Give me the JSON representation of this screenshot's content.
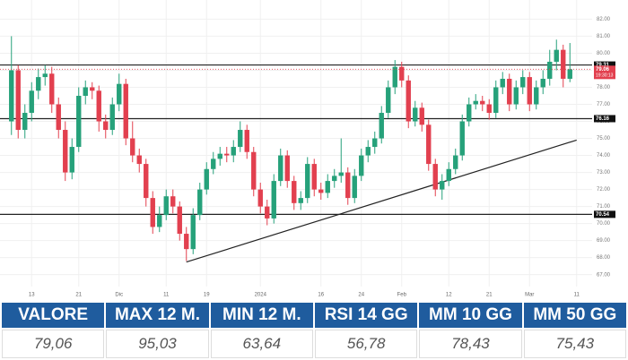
{
  "chart_data": {
    "type": "candlestick",
    "up_color": "#26a17a",
    "down_color": "#e2404f",
    "xlim": [
      -1.7,
      86.3
    ],
    "xticks": [
      {
        "value": 3,
        "label": "13"
      },
      {
        "value": 10,
        "label": "21"
      },
      {
        "value": 16,
        "label": "Dic"
      },
      {
        "value": 23,
        "label": "11"
      },
      {
        "value": 29,
        "label": "19"
      },
      {
        "value": 37,
        "label": "2024"
      },
      {
        "value": 46,
        "label": "16"
      },
      {
        "value": 52,
        "label": "24"
      },
      {
        "value": 58,
        "label": "Feb"
      },
      {
        "value": 65,
        "label": "12"
      },
      {
        "value": 71,
        "label": "21"
      },
      {
        "value": 77,
        "label": "Mar"
      },
      {
        "value": 84,
        "label": "11"
      }
    ],
    "ylim": [
      82.6,
      66.3
    ],
    "yticks": [
      {
        "value": 82,
        "label": "82.00"
      },
      {
        "value": 81,
        "label": "81.00"
      },
      {
        "value": 80,
        "label": "80.00"
      },
      {
        "value": 79,
        "label": "79.00"
      },
      {
        "value": 78,
        "label": "78.00"
      },
      {
        "value": 77,
        "label": "77.00"
      },
      {
        "value": 76,
        "label": "76.00"
      },
      {
        "value": 75,
        "label": "75.00"
      },
      {
        "value": 74,
        "label": "74.00"
      },
      {
        "value": 73,
        "label": "73.00"
      },
      {
        "value": 72,
        "label": "72.00"
      },
      {
        "value": 71,
        "label": "71.00"
      },
      {
        "value": 70,
        "label": "70.00"
      },
      {
        "value": 69,
        "label": "69.00"
      },
      {
        "value": 68,
        "label": "68.00"
      },
      {
        "value": 67,
        "label": "67.00"
      }
    ],
    "grid": true,
    "open": [
      76.0,
      79.0,
      75.5,
      76.5,
      77.8,
      78.6,
      78.8,
      77.0,
      75.5,
      73.0,
      74.5,
      77.5,
      78.0,
      77.8,
      76.0,
      75.5,
      77.0,
      78.2,
      75.0,
      74.0,
      73.5,
      71.5,
      69.8,
      70.5,
      71.6,
      71.0,
      69.4,
      68.5,
      70.5,
      72.0,
      73.2,
      73.8,
      74.1,
      74.0,
      74.5,
      75.5,
      74.2,
      72.0,
      71.0,
      70.3,
      72.5,
      74.0,
      72.5,
      71.2,
      71.5,
      73.5,
      72.0,
      71.8,
      72.5,
      72.8,
      73.0,
      71.5,
      72.8,
      74.0,
      74.5,
      75.0,
      76.5,
      78.0,
      79.2,
      78.4,
      76.0,
      76.8,
      75.8,
      73.5,
      72.0,
      72.5,
      73.2,
      74.0,
      76.0,
      77.0,
      77.2,
      77.0,
      76.5,
      78.0,
      78.5,
      77.0,
      78.0,
      78.6,
      77.0,
      78.0,
      78.5,
      79.5,
      80.2,
      78.5
    ],
    "high": [
      81.0,
      79.3,
      77.0,
      78.3,
      79.1,
      79.3,
      79.2,
      77.4,
      76.0,
      75.0,
      78.0,
      78.4,
      78.3,
      78.1,
      76.4,
      77.4,
      78.8,
      78.5,
      76.0,
      74.4,
      73.8,
      71.9,
      71.0,
      72.0,
      72.0,
      71.3,
      69.8,
      70.9,
      72.4,
      73.6,
      74.2,
      74.5,
      74.5,
      74.9,
      76.0,
      75.8,
      74.5,
      72.4,
      71.4,
      72.9,
      74.4,
      74.3,
      72.8,
      71.9,
      73.9,
      73.8,
      72.4,
      72.9,
      73.2,
      75.0,
      73.3,
      73.2,
      74.4,
      74.9,
      75.4,
      76.9,
      78.4,
      79.6,
      79.5,
      78.7,
      77.2,
      77.1,
      76.1,
      73.8,
      72.9,
      73.6,
      74.4,
      76.4,
      77.4,
      77.6,
      77.5,
      77.3,
      78.4,
      78.9,
      78.8,
      78.4,
      79.0,
      78.9,
      78.4,
      79.0,
      80.2,
      80.8,
      80.5,
      80.6
    ],
    "low": [
      75.2,
      75.0,
      75.0,
      76.0,
      77.3,
      78.1,
      76.5,
      75.0,
      72.5,
      72.6,
      74.2,
      77.0,
      77.3,
      75.4,
      75.0,
      75.2,
      76.6,
      74.6,
      73.6,
      73.0,
      71.0,
      69.4,
      69.5,
      70.2,
      70.6,
      69.0,
      67.8,
      68.2,
      70.2,
      71.7,
      72.9,
      73.4,
      73.6,
      73.6,
      74.2,
      73.8,
      71.6,
      70.6,
      69.9,
      70.0,
      72.2,
      72.1,
      70.8,
      70.8,
      71.2,
      71.6,
      71.4,
      71.5,
      72.1,
      72.4,
      71.1,
      71.2,
      72.5,
      73.6,
      74.1,
      74.7,
      76.2,
      77.6,
      78.0,
      75.6,
      75.7,
      75.4,
      73.1,
      71.6,
      71.4,
      72.2,
      72.9,
      73.7,
      75.7,
      76.7,
      76.6,
      76.1,
      76.2,
      77.6,
      76.6,
      76.7,
      77.6,
      76.6,
      76.7,
      77.6,
      78.1,
      79.0,
      78.0,
      78.3
    ],
    "close": [
      79.0,
      75.5,
      76.5,
      77.8,
      78.6,
      78.8,
      77.0,
      75.5,
      73.0,
      74.5,
      77.5,
      78.0,
      77.8,
      76.0,
      75.5,
      77.0,
      78.2,
      75.0,
      74.0,
      73.5,
      71.5,
      69.8,
      70.5,
      71.6,
      71.0,
      69.4,
      68.5,
      70.5,
      72.0,
      73.2,
      73.8,
      74.1,
      74.0,
      74.5,
      75.5,
      74.2,
      72.0,
      71.0,
      70.3,
      72.5,
      74.0,
      72.5,
      71.2,
      71.5,
      73.5,
      72.0,
      71.8,
      72.5,
      72.8,
      73.0,
      71.5,
      72.8,
      74.0,
      74.5,
      75.0,
      76.5,
      78.0,
      79.2,
      78.4,
      76.0,
      76.8,
      75.8,
      73.5,
      72.0,
      72.5,
      73.2,
      74.0,
      76.0,
      77.0,
      77.2,
      77.0,
      76.5,
      78.0,
      78.5,
      77.0,
      78.0,
      78.6,
      77.0,
      78.0,
      78.5,
      79.5,
      80.2,
      78.5,
      79.06
    ],
    "levels": [
      79.31,
      76.16,
      70.54
    ],
    "trendline": {
      "x": [
        26,
        84
      ],
      "values": [
        67.74,
        74.9
      ]
    },
    "last_price": 79.06,
    "countdown": "19:30:13"
  },
  "table": {
    "headers": [
      "VALORE",
      "MAX 12 M.",
      "MIN 12 M.",
      "RSI 14 GG",
      "MM 10 GG",
      "MM 50 GG"
    ],
    "rows": [
      [
        "79,06",
        "95,03",
        "63,64",
        "56,78",
        "78,43",
        "75,43"
      ]
    ]
  }
}
